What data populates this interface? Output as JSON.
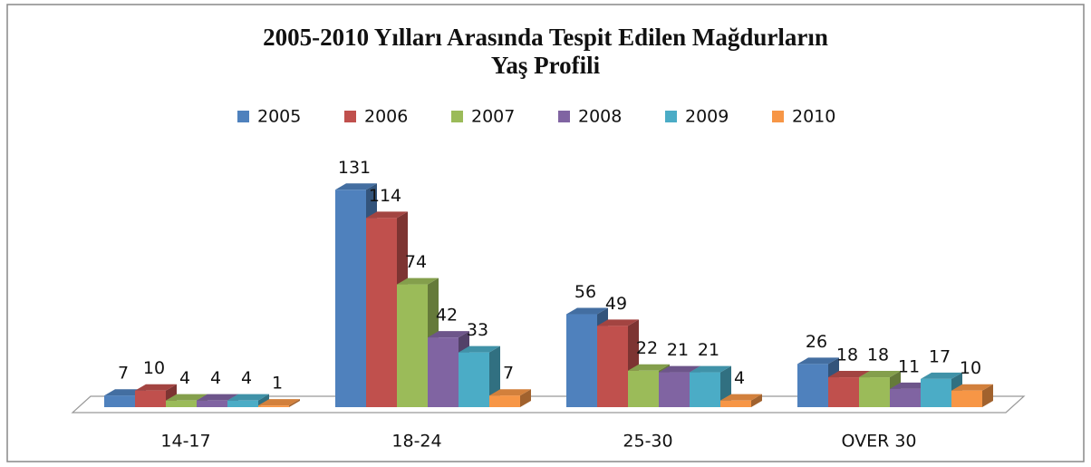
{
  "chart_data": {
    "type": "bar3d",
    "title": [
      "2005-2010 Yılları Arasında Tespit Edilen Mağdurların",
      "Yaş Profili"
    ],
    "categories": [
      "14-17",
      "18-24",
      "25-30",
      "OVER 30"
    ],
    "series": [
      {
        "name": "2005",
        "color": "#4f81bd",
        "values": [
          7,
          131,
          56,
          26
        ]
      },
      {
        "name": "2006",
        "color": "#c0504d",
        "values": [
          10,
          114,
          49,
          18
        ]
      },
      {
        "name": "2007",
        "color": "#9bbb59",
        "values": [
          4,
          74,
          22,
          18
        ]
      },
      {
        "name": "2008",
        "color": "#8064a2",
        "values": [
          4,
          42,
          21,
          11
        ]
      },
      {
        "name": "2009",
        "color": "#4bacc6",
        "values": [
          4,
          33,
          21,
          17
        ]
      },
      {
        "name": "2010",
        "color": "#f79646",
        "values": [
          1,
          7,
          4,
          10
        ]
      }
    ],
    "legend": "top"
  }
}
